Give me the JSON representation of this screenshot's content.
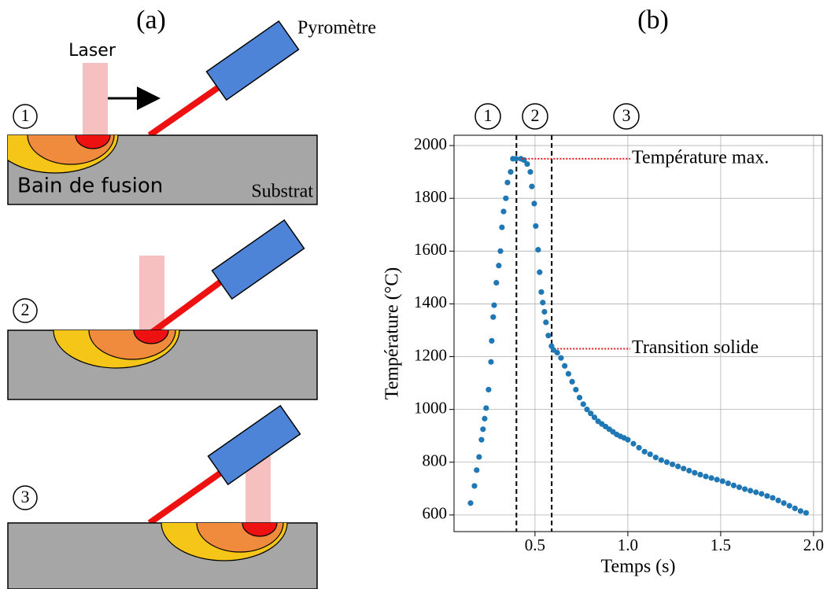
{
  "diagram": {
    "panel_label": "(a)",
    "laser": "Laser",
    "pyrometer": "Pyromètre",
    "steps": [
      "1",
      "2",
      "3"
    ],
    "melt_pool": "Bain de fusion",
    "substrate": "Substrat"
  },
  "chart_data": {
    "type": "scatter",
    "panel_label": "(b)",
    "phase_labels": [
      "1",
      "2",
      "3"
    ],
    "x_label": "Temps (s)",
    "y_label": "Température (°C)",
    "xlim": [
      0.064,
      2.047
    ],
    "ylim": [
      537,
      2039
    ],
    "xticks": [
      0.5,
      {
        "value": 1,
        "label": "1.0"
      },
      1.5,
      {
        "value": 2,
        "label": "2.0"
      }
    ],
    "yticks": [
      600,
      800,
      1000,
      1200,
      1400,
      1600,
      1800,
      2000
    ],
    "grid": true,
    "vlines": [
      0.4,
      0.59
    ],
    "annotations": [
      {
        "text": "Température max.",
        "x": 0.43,
        "y": 1950
      },
      {
        "text": "Transition solide",
        "x": 0.62,
        "y": 1230
      }
    ],
    "x": [
      0.153,
      0.174,
      0.186,
      0.199,
      0.212,
      0.22,
      0.229,
      0.237,
      0.25,
      0.263,
      0.267,
      0.275,
      0.28,
      0.292,
      0.305,
      0.314,
      0.322,
      0.331,
      0.343,
      0.352,
      0.369,
      0.381,
      0.398,
      0.424,
      0.441,
      0.458,
      0.475,
      0.483,
      0.496,
      0.504,
      0.517,
      0.525,
      0.534,
      0.542,
      0.551,
      0.559,
      0.572,
      0.589,
      0.6,
      0.62,
      0.64,
      0.66,
      0.68,
      0.7,
      0.72,
      0.74,
      0.76,
      0.78,
      0.8,
      0.82,
      0.84,
      0.86,
      0.88,
      0.9,
      0.92,
      0.94,
      0.96,
      0.98,
      1.0,
      1.03,
      1.06,
      1.09,
      1.12,
      1.15,
      1.18,
      1.21,
      1.24,
      1.27,
      1.3,
      1.33,
      1.36,
      1.39,
      1.42,
      1.45,
      1.48,
      1.51,
      1.54,
      1.57,
      1.6,
      1.63,
      1.66,
      1.69,
      1.72,
      1.75,
      1.78,
      1.81,
      1.84,
      1.87,
      1.9,
      1.93,
      1.96
    ],
    "series": [
      {
        "color": "#1f77b4",
        "values": [
          645,
          710,
          770,
          820,
          885,
          925,
          965,
          1005,
          1075,
          1180,
          1260,
          1350,
          1395,
          1480,
          1545,
          1600,
          1690,
          1750,
          1800,
          1860,
          1900,
          1950,
          1950,
          1950,
          1945,
          1930,
          1900,
          1845,
          1780,
          1695,
          1605,
          1520,
          1445,
          1405,
          1370,
          1330,
          1280,
          1240,
          1225,
          1215,
          1195,
          1165,
          1135,
          1105,
          1075,
          1045,
          1020,
          1000,
          985,
          970,
          955,
          945,
          935,
          925,
          915,
          905,
          898,
          892,
          885,
          870,
          855,
          840,
          830,
          818,
          808,
          800,
          792,
          784,
          776,
          768,
          760,
          753,
          746,
          740,
          734,
          728,
          720,
          712,
          705,
          698,
          692,
          686,
          680,
          672,
          665,
          655,
          645,
          635,
          625,
          615,
          608
        ]
      }
    ]
  }
}
